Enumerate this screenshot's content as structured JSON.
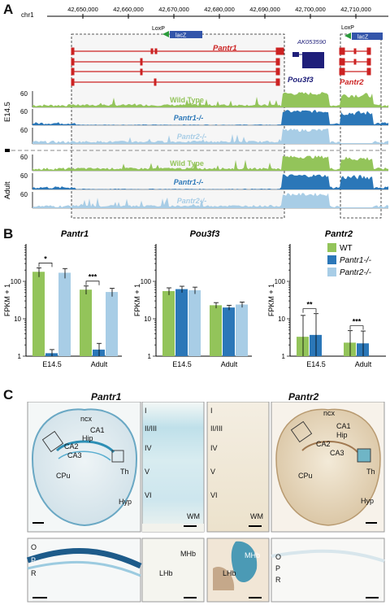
{
  "panelA": {
    "label": "A",
    "chrom": "chr1",
    "ticks": [
      "42,650,000",
      "42,660,000",
      "42,670,000",
      "42,680,000",
      "42,690,000",
      "42,700,000",
      "42,710,000"
    ],
    "loxp": [
      "LoxP",
      "LoxP"
    ],
    "lacz": [
      "lacZ",
      "lacZ"
    ],
    "genes": {
      "pantr1": "Pantr1",
      "ak": "AK053590",
      "pou3f3": "Pou3f3",
      "pantr2": "Pantr2"
    },
    "stages": [
      "E14.5",
      "Adult"
    ],
    "track_names": [
      "Wild Type",
      "Pantr1-/-",
      "Pantr2-/-"
    ],
    "ymax": "60",
    "colors": {
      "wt": "#93c45a",
      "p1": "#2b77b8",
      "p2": "#a8cde6",
      "gene": "#cc2222",
      "pou": "#1f1f7a",
      "lacz": "#3355aa"
    }
  },
  "panelB": {
    "label": "B",
    "ylabel": "FPKM + 1",
    "legend": [
      "WT",
      "Pantr1-/-",
      "Pantr2-/-"
    ],
    "colors": [
      "#93c45a",
      "#2b77b8",
      "#a8cde6"
    ],
    "charts": [
      {
        "title": "Pantr1",
        "groups": [
          "E14.5",
          "Adult"
        ],
        "values": [
          [
            180,
            1.2,
            170
          ],
          [
            60,
            1.5,
            52
          ]
        ],
        "errors": [
          [
            50,
            0.3,
            50
          ],
          [
            15,
            0.7,
            13
          ]
        ],
        "sig": [
          {
            "text": "*",
            "group": 0
          },
          {
            "text": "***",
            "group": 1
          }
        ]
      },
      {
        "title": "Pou3f3",
        "groups": [
          "E14.5",
          "Adult"
        ],
        "values": [
          [
            55,
            62,
            58
          ],
          [
            23,
            20,
            24
          ]
        ],
        "errors": [
          [
            12,
            12,
            12
          ],
          [
            4,
            3,
            4
          ]
        ],
        "sig": []
      },
      {
        "title": "Pantr2",
        "groups": [
          "E14.5",
          "Adult"
        ],
        "values": [
          [
            3.3,
            3.7,
            1
          ],
          [
            2.3,
            2.2,
            1
          ]
        ],
        "errors": [
          [
            9,
            10,
            0
          ],
          [
            2.5,
            2.5,
            0
          ]
        ],
        "sig": [
          {
            "text": "**",
            "group": 0
          },
          {
            "text": "***",
            "group": 1
          }
        ]
      }
    ],
    "yticks": [
      "1",
      "10",
      "100"
    ]
  },
  "panelC": {
    "label": "C",
    "titles": [
      "Pantr1",
      "Pantr2"
    ],
    "brain_labels": [
      "ncx",
      "CA1",
      "Hip",
      "CA2",
      "CA3",
      "Th",
      "CPu",
      "Hyp"
    ],
    "layers": [
      "I",
      "II/III",
      "IV",
      "V",
      "VI"
    ],
    "wm": "WM",
    "hippo_layers": [
      "O",
      "P",
      "R"
    ],
    "habenula": [
      "MHb",
      "LHb"
    ]
  }
}
